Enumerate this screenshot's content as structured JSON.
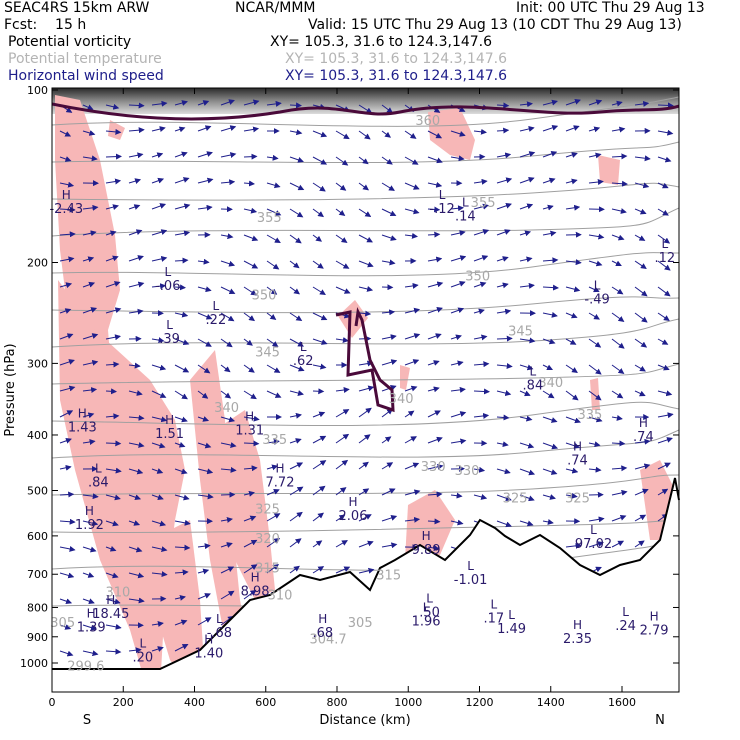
{
  "header": {
    "line1_left": "SEAC4RS 15km ARW",
    "line1_center": "NCAR/MMM",
    "line1_right": "Init: 00 UTC Thu 29 Aug 13",
    "line2_left": "Fcst:    15 h",
    "line2_right": "Valid: 15 UTC Thu 29 Aug 13 (10 CDT Thu 29 Aug 13)",
    "fields": [
      {
        "name": "Potential vorticity",
        "xy": "XY= 105.3, 31.6 to 124.3,147.6"
      },
      {
        "name": "Potential temperature",
        "xy": "XY= 105.3, 31.6 to 124.3,147.6"
      },
      {
        "name": "Horizontal wind speed",
        "xy": "XY= 105.3, 31.6 to 124.3,147.6"
      }
    ]
  },
  "colors": {
    "pv_fill": "#f7b7b7",
    "pv_contour": "#4a0a3a",
    "theta_contour": "#a0a0a0",
    "wind_arrow": "#1f1f8c",
    "terrain": "#000000"
  },
  "chart_data": {
    "type": "cross-section",
    "xlabel": "Distance (km)",
    "ylabel": "Pressure (hPa)",
    "xlim": [
      0,
      1760
    ],
    "ylim": [
      1050,
      100
    ],
    "y_scale": "log",
    "xticks": [
      0,
      200,
      400,
      600,
      800,
      1000,
      1200,
      1400,
      1600
    ],
    "yticks": [
      100,
      200,
      300,
      400,
      500,
      600,
      700,
      800,
      900,
      1000
    ],
    "endpoints": {
      "left": "S",
      "right": "N"
    },
    "grid": false,
    "theta_labels": [
      {
        "text": "360",
        "x": 1055,
        "y": 115
      },
      {
        "text": "355",
        "x": 1210,
        "y": 160
      },
      {
        "text": "355",
        "x": 610,
        "y": 170
      },
      {
        "text": "350",
        "x": 1195,
        "y": 215
      },
      {
        "text": "350",
        "x": 595,
        "y": 232
      },
      {
        "text": "345",
        "x": 1315,
        "y": 268
      },
      {
        "text": "345",
        "x": 605,
        "y": 292
      },
      {
        "text": "340",
        "x": 1400,
        "y": 330
      },
      {
        "text": "340",
        "x": 980,
        "y": 352
      },
      {
        "text": "340",
        "x": 490,
        "y": 365
      },
      {
        "text": "335",
        "x": 1510,
        "y": 375
      },
      {
        "text": "335",
        "x": 625,
        "y": 415
      },
      {
        "text": "330",
        "x": 1070,
        "y": 462
      },
      {
        "text": "330",
        "x": 1165,
        "y": 470
      },
      {
        "text": "325",
        "x": 1300,
        "y": 525
      },
      {
        "text": "325",
        "x": 1475,
        "y": 525
      },
      {
        "text": "325",
        "x": 605,
        "y": 548
      },
      {
        "text": "320",
        "x": 605,
        "y": 618
      },
      {
        "text": "315",
        "x": 605,
        "y": 695
      },
      {
        "text": "315",
        "x": 945,
        "y": 715
      },
      {
        "text": "310",
        "x": 640,
        "y": 775
      },
      {
        "text": "310",
        "x": 185,
        "y": 765
      },
      {
        "text": "305",
        "x": 865,
        "y": 865
      },
      {
        "text": "305",
        "x": 30,
        "y": 865
      },
      {
        "text": "304.7",
        "x": 775,
        "y": 925
      },
      {
        "text": "299.6",
        "x": 95,
        "y": 1030
      }
    ],
    "pv_extrema": [
      {
        "type": "H",
        "value": "-2.43",
        "x": 40,
        "y": 160
      },
      {
        "type": "L",
        "value": "-.06",
        "x": 325,
        "y": 218
      },
      {
        "type": "L",
        "value": ".39",
        "x": 330,
        "y": 270
      },
      {
        "type": "L",
        "value": ".22",
        "x": 460,
        "y": 250
      },
      {
        "type": "L",
        "value": ".62",
        "x": 705,
        "y": 295
      },
      {
        "type": "H",
        "value": "1.43",
        "x": 85,
        "y": 385
      },
      {
        "type": "H",
        "value": "1.51",
        "x": 330,
        "y": 395
      },
      {
        "type": "H",
        "value": "1.31",
        "x": 555,
        "y": 390
      },
      {
        "type": "L",
        "value": ".84",
        "x": 130,
        "y": 480
      },
      {
        "type": "H",
        "value": "7.72",
        "x": 640,
        "y": 480
      },
      {
        "type": "H",
        "value": "2.06",
        "x": 845,
        "y": 550
      },
      {
        "type": "H",
        "value": "1.92",
        "x": 105,
        "y": 570
      },
      {
        "type": "H",
        "value": "9.89",
        "x": 1050,
        "y": 630
      },
      {
        "type": "L",
        "value": "-.12",
        "x": 1095,
        "y": 160
      },
      {
        "type": "L",
        "value": ".14",
        "x": 1160,
        "y": 165
      },
      {
        "type": "L",
        "value": "-.49",
        "x": 1530,
        "y": 230
      },
      {
        "type": "L",
        "value": ".12",
        "x": 1720,
        "y": 195
      },
      {
        "type": "L",
        "value": ".84",
        "x": 1350,
        "y": 325
      },
      {
        "type": "H",
        "value": ".74",
        "x": 1475,
        "y": 440
      },
      {
        "type": "H",
        "value": ".74",
        "x": 1660,
        "y": 400
      },
      {
        "type": "L",
        "value": "97.02",
        "x": 1520,
        "y": 615
      },
      {
        "type": "L",
        "value": "-1.01",
        "x": 1175,
        "y": 710
      },
      {
        "type": "H",
        "value": "8.98",
        "x": 570,
        "y": 745
      },
      {
        "type": "L",
        "value": ".50",
        "x": 1060,
        "y": 810
      },
      {
        "type": "L",
        "value": "1.96",
        "x": 1050,
        "y": 840
      },
      {
        "type": "H",
        "value": "18.45",
        "x": 165,
        "y": 815
      },
      {
        "type": "H",
        "value": "1.39",
        "x": 110,
        "y": 860
      },
      {
        "type": "L",
        "value": "-.68",
        "x": 470,
        "y": 880
      },
      {
        "type": "H",
        "value": ".68",
        "x": 760,
        "y": 880
      },
      {
        "type": "L",
        "value": ".17",
        "x": 1240,
        "y": 830
      },
      {
        "type": "L",
        "value": "1.49",
        "x": 1290,
        "y": 865
      },
      {
        "type": "H",
        "value": "2.35",
        "x": 1475,
        "y": 900
      },
      {
        "type": "L",
        "value": ".24",
        "x": 1610,
        "y": 855
      },
      {
        "type": "H",
        "value": "2.79",
        "x": 1690,
        "y": 870
      },
      {
        "type": "H",
        "value": "1.40",
        "x": 440,
        "y": 955
      },
      {
        "type": "L",
        "value": ".20",
        "x": 255,
        "y": 970
      }
    ]
  }
}
